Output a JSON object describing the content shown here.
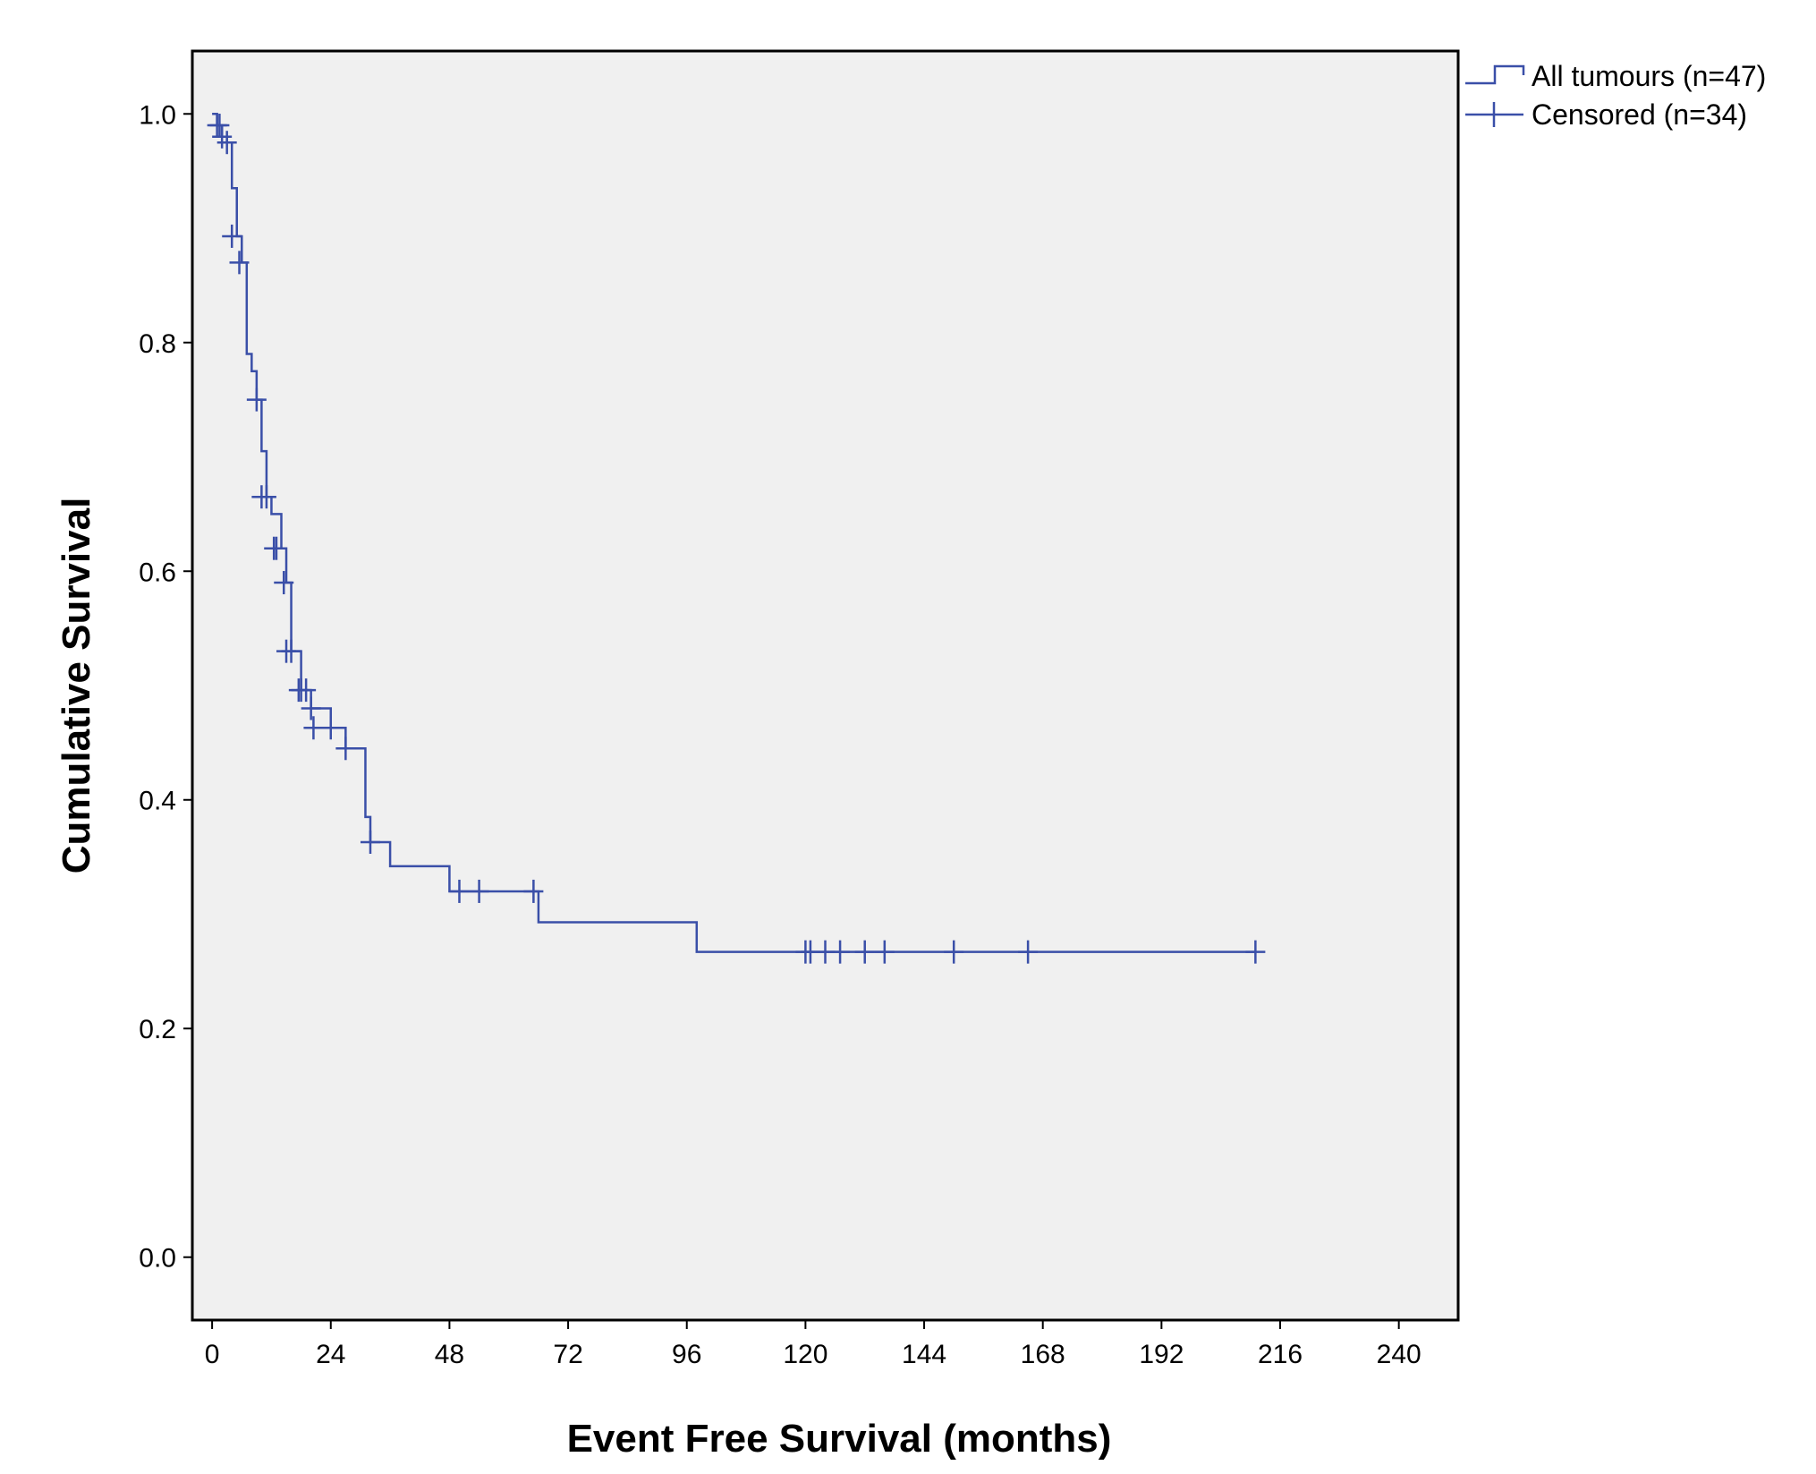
{
  "chart_data": {
    "type": "line",
    "subtype": "kaplan-meier-step",
    "title": "",
    "xlabel": "Event Free Survival (months)",
    "ylabel": "Cumulative Survival",
    "xlim": [
      -4,
      252
    ],
    "ylim": [
      -0.055,
      1.055
    ],
    "xticks": [
      0,
      24,
      48,
      72,
      96,
      120,
      144,
      168,
      192,
      216,
      240
    ],
    "yticks": [
      0.0,
      0.2,
      0.4,
      0.6,
      0.8,
      1.0
    ],
    "ytick_labels": [
      "0.0",
      "0.2",
      "0.4",
      "0.6",
      "0.8",
      "1.0"
    ],
    "grid": false,
    "background_color": "#f0f0f0",
    "line_color": "#3a4fa8",
    "legend": {
      "position": "outside-top-right",
      "entries": [
        {
          "label": "All tumours (n=47)",
          "kind": "step-line"
        },
        {
          "label": "Censored (n=34)",
          "kind": "censor-mark"
        }
      ]
    },
    "series": [
      {
        "name": "All tumours (n=47)",
        "step_x": [
          0,
          1,
          2,
          3,
          4,
          5,
          6,
          7,
          8,
          9,
          10,
          11,
          12,
          14,
          15,
          16,
          18,
          20,
          24,
          27,
          31,
          32,
          36,
          48,
          66,
          98,
          211
        ],
        "step_y": [
          1.0,
          0.99,
          0.98,
          0.975,
          0.935,
          0.893,
          0.87,
          0.79,
          0.775,
          0.75,
          0.705,
          0.665,
          0.65,
          0.62,
          0.59,
          0.53,
          0.496,
          0.48,
          0.463,
          0.445,
          0.385,
          0.363,
          0.342,
          0.32,
          0.293,
          0.267,
          0.267
        ]
      },
      {
        "name": "Censored (n=34)",
        "x": [
          1,
          1.5,
          2,
          3,
          4,
          5.5,
          9,
          10,
          11,
          12.5,
          13,
          14.5,
          15,
          16,
          17.5,
          18,
          19,
          20,
          20.5,
          24,
          27,
          32,
          50,
          54,
          65,
          120,
          121,
          124,
          127,
          132,
          136,
          150,
          165,
          211
        ],
        "y": [
          0.99,
          0.99,
          0.98,
          0.975,
          0.893,
          0.87,
          0.75,
          0.665,
          0.665,
          0.62,
          0.62,
          0.59,
          0.53,
          0.53,
          0.496,
          0.496,
          0.496,
          0.48,
          0.463,
          0.463,
          0.445,
          0.363,
          0.32,
          0.32,
          0.32,
          0.267,
          0.267,
          0.267,
          0.267,
          0.267,
          0.267,
          0.267,
          0.267,
          0.267
        ]
      }
    ]
  }
}
